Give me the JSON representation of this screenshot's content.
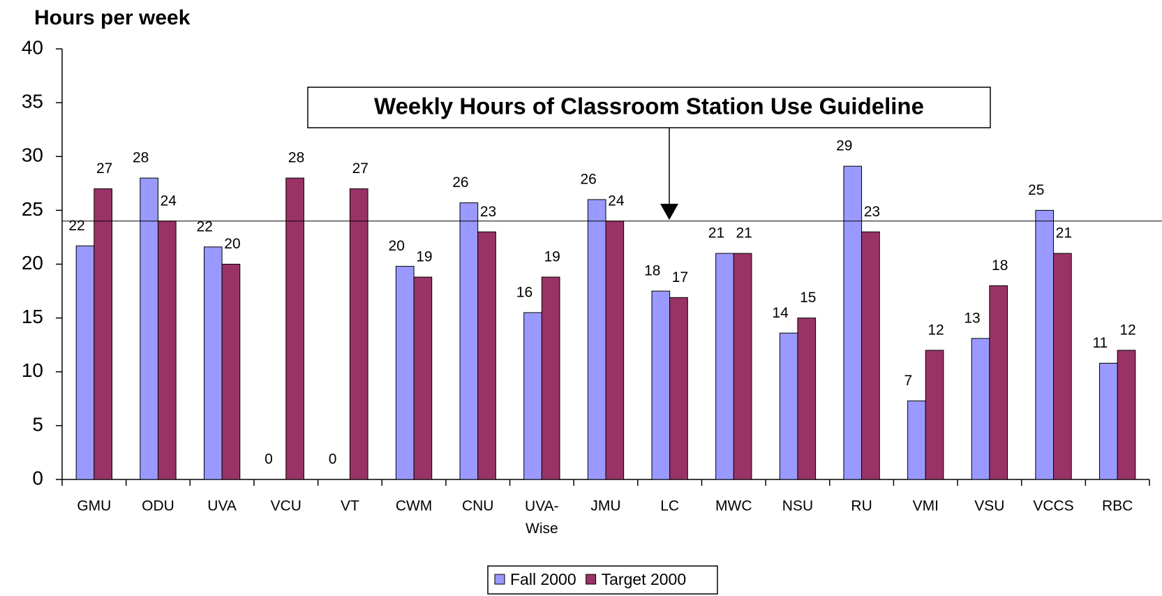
{
  "chart_data": {
    "type": "bar",
    "y_label": "Hours per week",
    "annotation": "Weekly Hours of Classroom Station Use Guideline",
    "guideline": 24,
    "categories": [
      "GMU",
      "ODU",
      "UVA",
      "VCU",
      "VT",
      "CWM",
      "CNU",
      "UVA-\nWise",
      "JMU",
      "LC",
      "MWC",
      "NSU",
      "RU",
      "VMI",
      "VSU",
      "VCCS",
      "RBC"
    ],
    "series": [
      {
        "name": "Fall 2000",
        "color": "#9999ff",
        "values": [
          21.7,
          28,
          21.6,
          0,
          0,
          19.8,
          25.7,
          15.5,
          26,
          17.5,
          21,
          13.6,
          29.1,
          7.3,
          13.1,
          25,
          10.8
        ],
        "value_labels": [
          "22",
          "28",
          "22",
          "0",
          "0",
          "20",
          "26",
          "16",
          "26",
          "18",
          "21",
          "14",
          "29",
          "7",
          "13",
          "25",
          "11"
        ]
      },
      {
        "name": "Target 2000",
        "color": "#993366",
        "values": [
          27,
          24,
          20,
          28,
          27,
          18.8,
          23,
          18.8,
          24,
          16.9,
          21,
          15,
          23,
          12,
          18,
          21,
          12
        ],
        "value_labels": [
          "27",
          "24",
          "20",
          "28",
          "27",
          "19",
          "23",
          "19",
          "24",
          "17",
          "21",
          "15",
          "23",
          "12",
          "18",
          "21",
          "12"
        ]
      }
    ],
    "ylim": [
      0,
      40
    ],
    "yticks": [
      0,
      5,
      10,
      15,
      20,
      25,
      30,
      35,
      40
    ],
    "legend": "bottom"
  }
}
